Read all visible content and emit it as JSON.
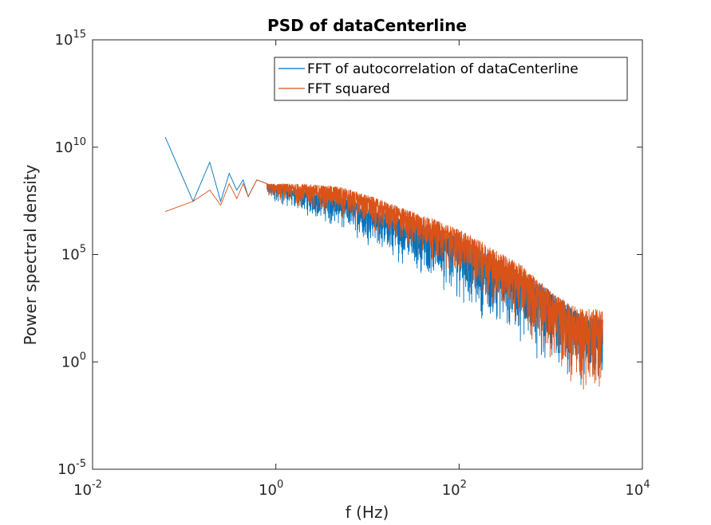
{
  "chart_data": {
    "type": "line",
    "title": "PSD of dataCenterline",
    "xlabel": "f (Hz)",
    "ylabel": "Power spectral density",
    "xscale": "log",
    "yscale": "log",
    "xlim": [
      0.01,
      10000
    ],
    "ylim": [
      1e-05,
      1000000000000000.0
    ],
    "grid": false,
    "legend_position": "top-right",
    "x_ticks": [
      {
        "base": "10",
        "exp": "-2"
      },
      {
        "base": "10",
        "exp": "0"
      },
      {
        "base": "10",
        "exp": "2"
      },
      {
        "base": "10",
        "exp": "4"
      }
    ],
    "y_ticks": [
      {
        "base": "10",
        "exp": "-5"
      },
      {
        "base": "10",
        "exp": "0"
      },
      {
        "base": "10",
        "exp": "5"
      },
      {
        "base": "10",
        "exp": "10"
      },
      {
        "base": "10",
        "exp": "15"
      }
    ],
    "series": [
      {
        "name": "FFT of autocorrelation of dataCenterline",
        "color": "#0072BD",
        "x": [
          0.062,
          0.125,
          0.19,
          0.25,
          0.31,
          0.375,
          0.44,
          0.5,
          0.62,
          0.8,
          1,
          2,
          5,
          10,
          20,
          50,
          100,
          200,
          500,
          1000,
          2000,
          3700
        ],
        "y_upper": [
          30000000000.0,
          30000000.0,
          2000000000.0,
          30000000.0,
          600000000.0,
          100000000.0,
          300000000.0,
          50000000.0,
          300000000.0,
          200000000.0,
          200000000.0,
          100000000.0,
          50000000.0,
          20000000.0,
          6000000.0,
          2000000.0,
          600000.0,
          120000.0,
          15000.0,
          2000.0,
          200,
          100
        ],
        "y_lower": [
          30000000000.0,
          30000000.0,
          2000000000.0,
          30000000.0,
          600000000.0,
          100000000.0,
          300000000.0,
          50000000.0,
          10000000.0,
          30000000.0,
          20000000.0,
          5000000.0,
          1000000.0,
          200000.0,
          30000.0,
          3000.0,
          300,
          30,
          3,
          0.3,
          0.03,
          0.01
        ]
      },
      {
        "name": "FFT squared",
        "color": "#D95319",
        "x": [
          0.062,
          0.125,
          0.19,
          0.25,
          0.31,
          0.375,
          0.44,
          0.5,
          0.62,
          0.8,
          1,
          2,
          5,
          10,
          20,
          50,
          100,
          200,
          500,
          1000,
          2000,
          3700
        ],
        "y_upper": [
          10000000.0,
          30000000.0,
          100000000.0,
          20000000.0,
          200000000.0,
          40000000.0,
          200000000.0,
          50000000.0,
          300000000.0,
          200000000.0,
          200000000.0,
          200000000.0,
          150000000.0,
          60000000.0,
          20000000.0,
          5000000.0,
          1500000.0,
          300000.0,
          30000.0,
          2000.0,
          300,
          300
        ],
        "y_lower": [
          10000000.0,
          30000000.0,
          100000000.0,
          20000000.0,
          200000000.0,
          40000000.0,
          200000000.0,
          50000000.0,
          50000000.0,
          40000000.0,
          30000000.0,
          10000000.0,
          3000000.0,
          1000000.0,
          200000.0,
          30000.0,
          5000.0,
          300,
          10,
          0.5,
          0.01,
          0.01
        ]
      }
    ]
  }
}
